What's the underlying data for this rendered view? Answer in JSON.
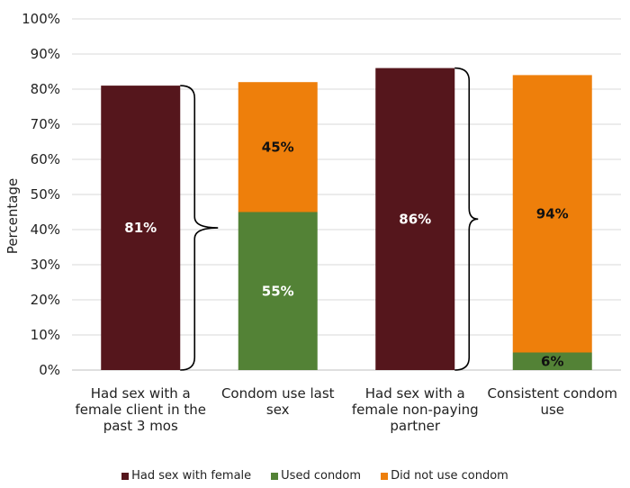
{
  "chart_data": {
    "type": "bar",
    "ylabel": "Percentage",
    "ylim": [
      0,
      100
    ],
    "y_ticks": [
      "0%",
      "10%",
      "20%",
      "30%",
      "40%",
      "50%",
      "60%",
      "70%",
      "80%",
      "90%",
      "100%"
    ],
    "grid": true,
    "legend_position": "bottom",
    "categories": [
      [
        "Had sex with a",
        "female client in the",
        "past 3 mos"
      ],
      [
        "Condom use last",
        "sex"
      ],
      [
        "Had sex with a",
        "female non-paying",
        "partner"
      ],
      [
        "Consistent condom",
        "use"
      ]
    ],
    "series": [
      {
        "name": "Had sex with female",
        "color": "#55161c",
        "values": [
          81,
          null,
          86,
          null
        ],
        "labels": [
          "81%",
          null,
          "86%",
          null
        ]
      },
      {
        "name": "Used condom",
        "color": "#538236",
        "values": [
          null,
          45,
          null,
          5
        ],
        "labels": [
          null,
          "55%",
          null,
          "6%"
        ]
      },
      {
        "name": "Did not use condom",
        "color": "#ee7f0b",
        "values": [
          null,
          37,
          null,
          79
        ],
        "labels": [
          null,
          "45%",
          null,
          "94%"
        ]
      }
    ],
    "annotations": [
      "brace",
      "brace"
    ]
  }
}
